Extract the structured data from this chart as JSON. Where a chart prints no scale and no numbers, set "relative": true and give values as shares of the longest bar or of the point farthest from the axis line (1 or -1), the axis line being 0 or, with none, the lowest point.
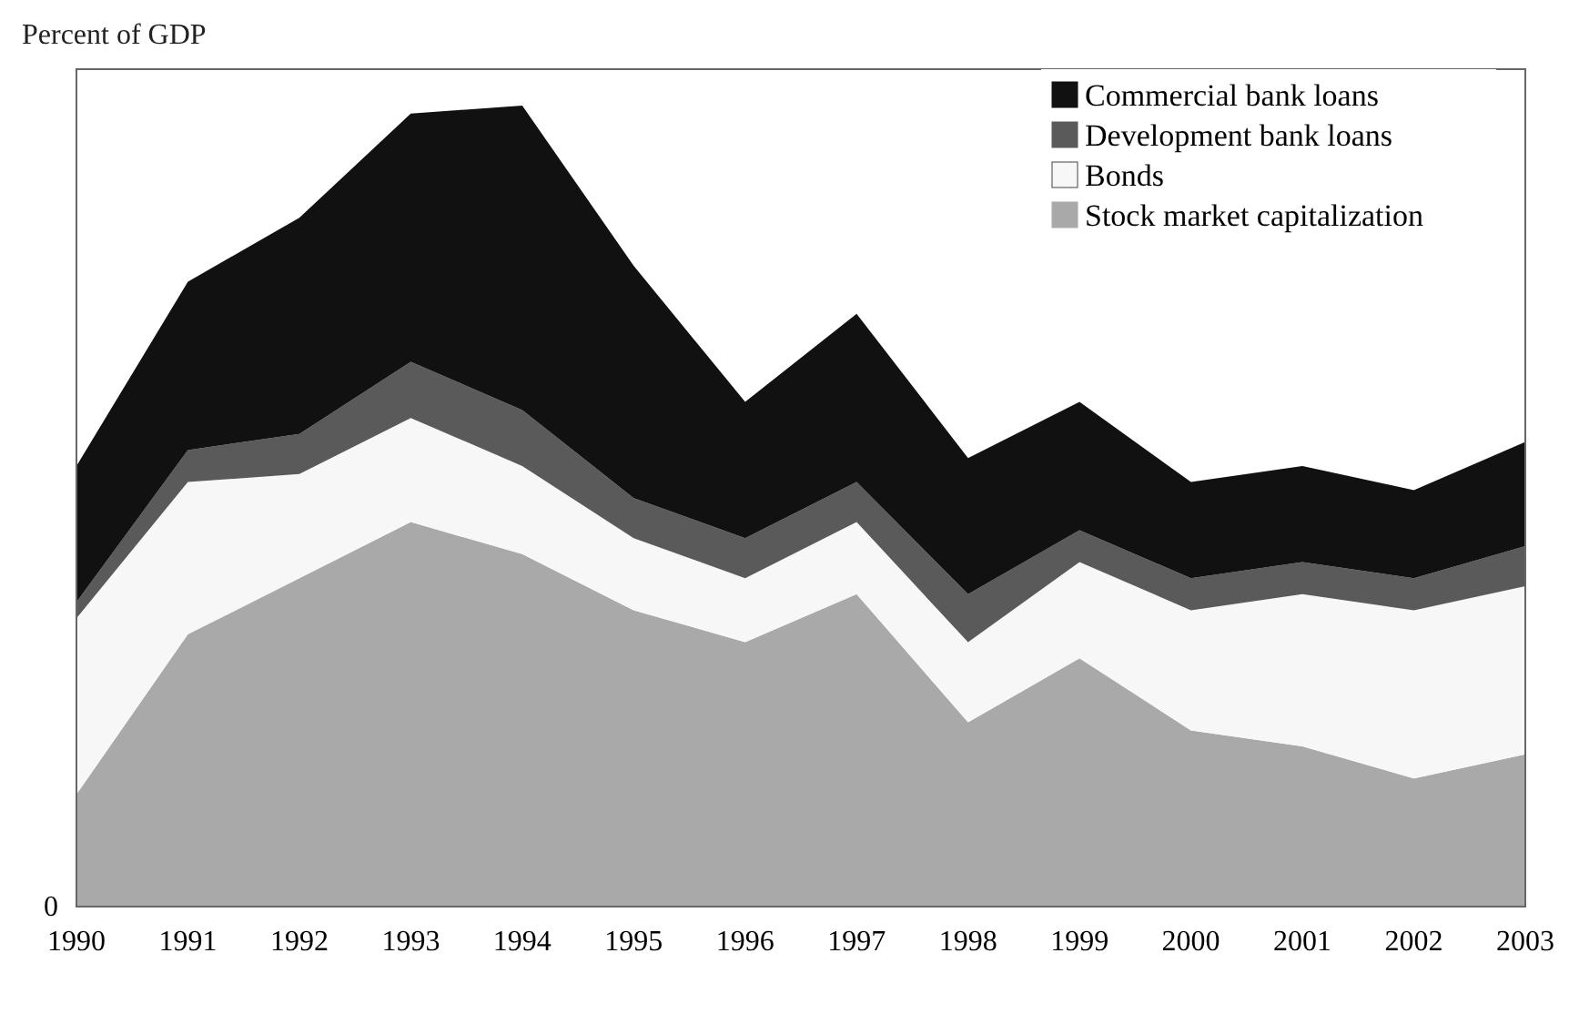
{
  "chart_data": {
    "type": "area",
    "title": "Percent of GDP",
    "stacked": true,
    "relative": true,
    "legend": "top right",
    "categories": [
      "1990",
      "1991",
      "1992",
      "1993",
      "1994",
      "1995",
      "1996",
      "1997",
      "1998",
      "1999",
      "2000",
      "2001",
      "2002",
      "2003"
    ],
    "series": [
      {
        "name": "Stock market capitalization",
        "color": "#a9a9a9",
        "values": [
          0.14,
          0.34,
          0.41,
          0.48,
          0.44,
          0.37,
          0.33,
          0.39,
          0.23,
          0.31,
          0.22,
          0.2,
          0.16,
          0.19
        ]
      },
      {
        "name": "Bonds",
        "color": "#f7f7f7",
        "values": [
          0.22,
          0.19,
          0.13,
          0.13,
          0.11,
          0.09,
          0.08,
          0.09,
          0.1,
          0.12,
          0.15,
          0.19,
          0.21,
          0.21
        ]
      },
      {
        "name": "Development bank loans",
        "color": "#5a5a5a",
        "values": [
          0.02,
          0.04,
          0.05,
          0.07,
          0.07,
          0.05,
          0.05,
          0.05,
          0.06,
          0.04,
          0.04,
          0.04,
          0.04,
          0.05
        ]
      },
      {
        "name": "Commercial bank loans",
        "color": "#111111",
        "values": [
          0.17,
          0.21,
          0.27,
          0.31,
          0.38,
          0.29,
          0.17,
          0.21,
          0.17,
          0.16,
          0.12,
          0.12,
          0.11,
          0.13
        ]
      }
    ],
    "annotations": [
      "0"
    ]
  }
}
